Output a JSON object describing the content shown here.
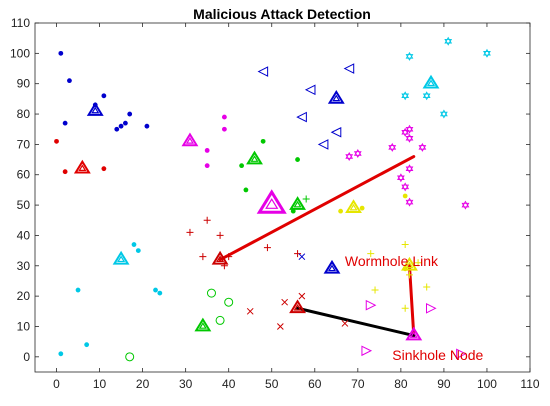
{
  "chart_data": {
    "type": "scatter",
    "title": "Malicious Attack Detection",
    "xlabel": "",
    "ylabel": "",
    "xlim": [
      -5,
      110
    ],
    "ylim": [
      -5,
      110
    ],
    "xticks": [
      0,
      10,
      20,
      30,
      40,
      50,
      60,
      70,
      80,
      90,
      100,
      110
    ],
    "yticks": [
      0,
      10,
      20,
      30,
      40,
      50,
      60,
      70,
      80,
      90,
      100,
      110
    ],
    "grid": false,
    "legend": "none",
    "series": [
      {
        "color": "#0000cd",
        "marker": "dot",
        "points": [
          [
            1,
            100
          ],
          [
            3,
            91
          ],
          [
            2,
            77
          ],
          [
            11,
            86
          ],
          [
            9,
            83
          ],
          [
            17,
            80
          ],
          [
            16,
            77
          ],
          [
            15,
            76
          ],
          [
            14,
            75
          ],
          [
            21,
            76
          ]
        ],
        "heads": [
          {
            "xy": [
              9,
              81
            ],
            "size": "medium"
          }
        ]
      },
      {
        "color": "#e00000",
        "marker": "dot",
        "points": [
          [
            0,
            71
          ],
          [
            2,
            61
          ],
          [
            11,
            62
          ]
        ],
        "heads": [
          {
            "xy": [
              6,
              62
            ],
            "size": "medium"
          }
        ]
      },
      {
        "color": "#00c8e6",
        "marker": "dot",
        "points": [
          [
            18,
            37
          ],
          [
            19,
            35
          ],
          [
            23,
            22
          ],
          [
            24,
            21
          ],
          [
            5,
            22
          ],
          [
            1,
            1
          ],
          [
            7,
            4
          ]
        ],
        "heads": [
          {
            "xy": [
              15,
              32
            ],
            "size": "medium"
          }
        ]
      },
      {
        "color": "#e600e6",
        "marker": "dot",
        "points": [
          [
            39,
            79
          ],
          [
            39,
            75
          ],
          [
            35,
            68
          ],
          [
            35,
            63
          ]
        ],
        "heads": [
          {
            "xy": [
              31,
              71
            ],
            "size": "medium"
          },
          {
            "xy": [
              50,
              50
            ],
            "size": "large"
          }
        ]
      },
      {
        "color": "#00c800",
        "marker": "dot",
        "points": [
          [
            48,
            71
          ],
          [
            43,
            63
          ],
          [
            44,
            55
          ],
          [
            56,
            65
          ],
          [
            55,
            48
          ]
        ],
        "heads": [
          {
            "xy": [
              46,
              65
            ],
            "size": "medium"
          },
          {
            "xy": [
              56,
              50
            ],
            "size": "medium"
          }
        ]
      },
      {
        "color": "#00c800",
        "marker": "plus",
        "points": [
          [
            58,
            52
          ]
        ],
        "heads": []
      },
      {
        "color": "#00c800",
        "marker": "circle",
        "points": [
          [
            36,
            21
          ],
          [
            40,
            18
          ],
          [
            38,
            12
          ],
          [
            17,
            0
          ]
        ],
        "heads": [
          {
            "xy": [
              34,
              10
            ],
            "size": "medium"
          }
        ]
      },
      {
        "color": "#cc0000",
        "marker": "plus",
        "points": [
          [
            35,
            45
          ],
          [
            31,
            41
          ],
          [
            34,
            33
          ],
          [
            38,
            40
          ],
          [
            40,
            33
          ],
          [
            39,
            30
          ],
          [
            49,
            36
          ],
          [
            56,
            34
          ]
        ],
        "heads": [
          {
            "xy": [
              38,
              32
            ],
            "size": "medium"
          }
        ]
      },
      {
        "color": "#cc0000",
        "marker": "x",
        "points": [
          [
            45,
            15
          ],
          [
            53,
            18
          ],
          [
            52,
            10
          ],
          [
            57,
            20
          ],
          [
            67,
            11
          ]
        ],
        "heads": [
          {
            "xy": [
              56,
              16
            ],
            "size": "medium"
          }
        ]
      },
      {
        "color": "#0000cd",
        "marker": "tri-left",
        "points": [
          [
            48,
            94
          ],
          [
            59,
            88
          ],
          [
            68,
            95
          ],
          [
            57,
            79
          ],
          [
            65,
            74
          ],
          [
            62,
            70
          ]
        ],
        "heads": [
          {
            "xy": [
              65,
              85
            ],
            "size": "medium"
          }
        ]
      },
      {
        "color": "#0000cd",
        "marker": "x",
        "points": [
          [
            57,
            33
          ]
        ],
        "heads": [
          {
            "xy": [
              64,
              29
            ],
            "size": "medium"
          }
        ]
      },
      {
        "color": "#00c8e6",
        "marker": "hexagram",
        "points": [
          [
            91,
            104
          ],
          [
            82,
            99
          ],
          [
            100,
            100
          ],
          [
            81,
            86
          ],
          [
            86,
            86
          ],
          [
            90,
            80
          ]
        ],
        "heads": [
          {
            "xy": [
              87,
              90
            ],
            "size": "medium"
          }
        ]
      },
      {
        "color": "#e600e6",
        "marker": "hexagram",
        "points": [
          [
            70,
            67
          ],
          [
            68,
            66
          ],
          [
            78,
            69
          ],
          [
            82,
            75
          ],
          [
            81,
            74
          ],
          [
            82,
            72
          ],
          [
            85,
            69
          ],
          [
            80,
            59
          ],
          [
            81,
            56
          ],
          [
            82,
            62
          ],
          [
            82,
            51
          ],
          [
            95,
            50
          ]
        ],
        "heads": []
      },
      {
        "color": "#e6e600",
        "marker": "plus",
        "points": [
          [
            73,
            34
          ],
          [
            81,
            37
          ],
          [
            84,
            31
          ],
          [
            82,
            27
          ],
          [
            86,
            23
          ],
          [
            74,
            22
          ],
          [
            81,
            16
          ]
        ],
        "heads": [
          {
            "xy": [
              69,
              49
            ],
            "size": "medium"
          },
          {
            "xy": [
              82,
              30
            ],
            "size": "medium"
          }
        ]
      },
      {
        "color": "#e6e600",
        "marker": "dot",
        "points": [
          [
            66,
            48
          ],
          [
            71,
            49
          ],
          [
            81,
            53
          ],
          [
            81,
            29
          ]
        ],
        "heads": []
      },
      {
        "color": "#e600e6",
        "marker": "tri-right",
        "points": [
          [
            73,
            17
          ],
          [
            87,
            16
          ],
          [
            72,
            2
          ],
          [
            94,
            1
          ]
        ],
        "heads": [
          {
            "xy": [
              83,
              7
            ],
            "size": "medium"
          }
        ]
      }
    ],
    "links": [
      {
        "name": "Wormhole Link",
        "from": [
          38,
          32
        ],
        "to": [
          83,
          66
        ],
        "color": "#e00000"
      },
      {
        "from": [
          82,
          30
        ],
        "to": [
          83,
          7
        ],
        "color": "#e00000"
      },
      {
        "from": [
          56,
          16
        ],
        "to": [
          83,
          7
        ],
        "color": "#000000"
      }
    ],
    "annotations": [
      {
        "text": "Wormhole Link",
        "xy": [
          67,
          30
        ],
        "color": "#e00000"
      },
      {
        "text": "Sinkhole Node",
        "xy": [
          78,
          -1
        ],
        "color": "#e00000"
      }
    ]
  }
}
